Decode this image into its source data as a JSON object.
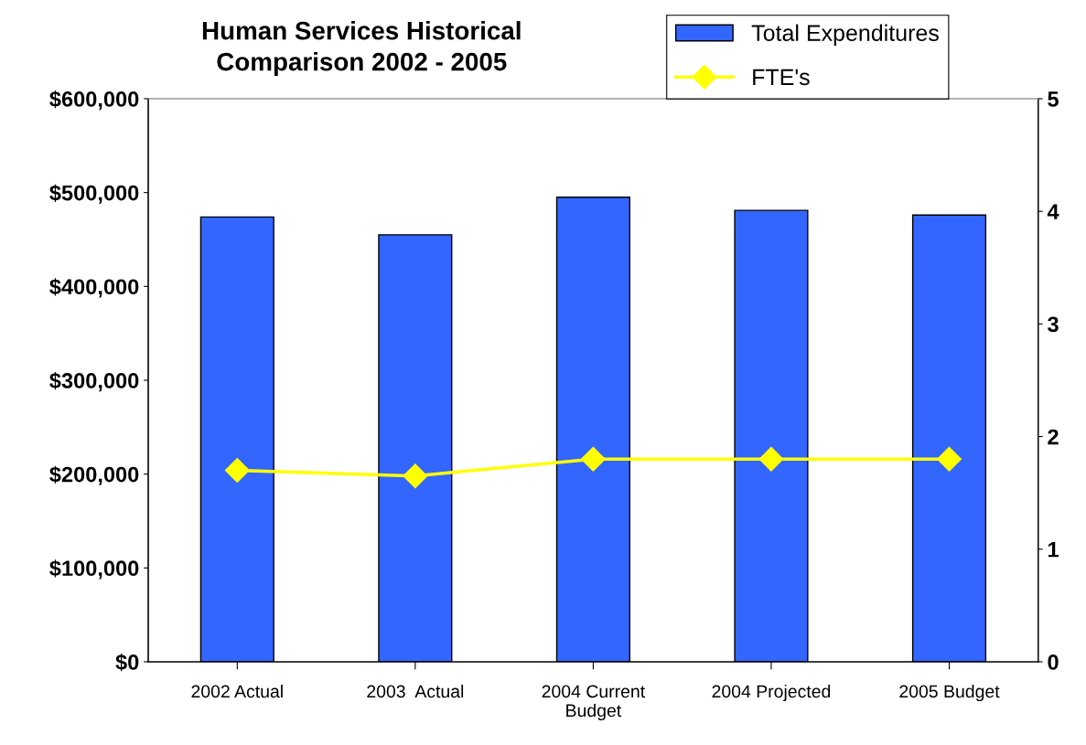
{
  "chart_data": {
    "type": "bar",
    "title": "Human Services Historical\nComparison 2002 - 2005",
    "categories": [
      "2002 Actual",
      "2003  Actual",
      "2004 Current\nBudget",
      "2004 Projected",
      "2005 Budget"
    ],
    "series": [
      {
        "name": "Total Expenditures",
        "color": "#3366ff",
        "values": [
          474000,
          455000,
          495000,
          481000,
          476000
        ]
      },
      {
        "name": "FTE's",
        "type": "line",
        "axis": "y2",
        "color": "#ffff00",
        "marker": "diamond",
        "values": [
          1.7,
          1.65,
          1.8,
          1.8,
          1.8
        ]
      }
    ],
    "ylim": [
      0,
      600000
    ],
    "yticks": [
      {
        "value": 0,
        "label": "$0"
      },
      {
        "value": 100000,
        "label": "$100,000"
      },
      {
        "value": 200000,
        "label": "$200,000"
      },
      {
        "value": 300000,
        "label": "$300,000"
      },
      {
        "value": 400000,
        "label": "$400,000"
      },
      {
        "value": 500000,
        "label": "$500,000"
      },
      {
        "value": 600000,
        "label": "$600,000"
      }
    ],
    "y2lim": [
      0,
      5
    ],
    "y2ticks": [
      0,
      1,
      2,
      3,
      4,
      5
    ],
    "grid": false,
    "legend": "top right"
  }
}
